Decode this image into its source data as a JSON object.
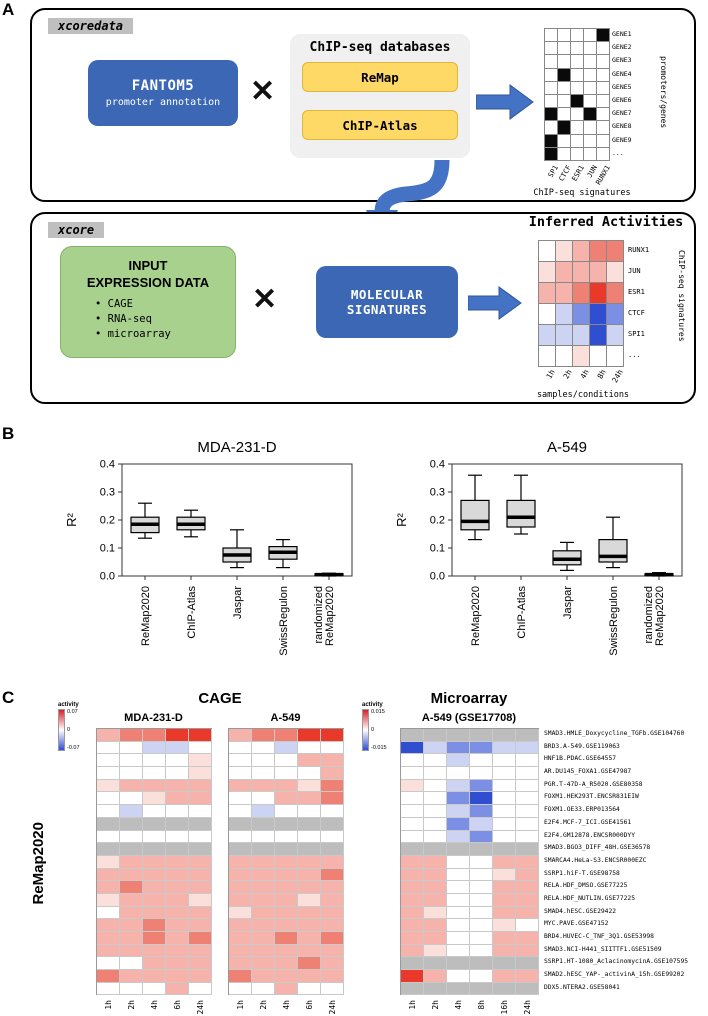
{
  "figure": {
    "panel_a_label": "A",
    "panel_b_label": "B",
    "panel_c_label": "C"
  },
  "palette": {
    "w": "#ffffff",
    "q": "#fbdfdb",
    "p": "#f5b3ab",
    "r": "#ee8074",
    "R": "#e8392b",
    "b": "#ccd3f3",
    "B": "#7b90e4",
    "D": "#2f4ed0",
    "g": "#bdbdbd"
  },
  "panel_a": {
    "xcoredata_tag": "xcoredata",
    "xcore_tag": "xcore",
    "times": "✕",
    "fantom5": {
      "title": "FANTOM5",
      "subtitle": "promoter annotation"
    },
    "databases": {
      "title": "ChIP-seq databases",
      "items": [
        "ReMap",
        "ChIP-Atlas"
      ]
    },
    "matrix": {
      "gene_labels": [
        "GENE1",
        "GENE2",
        "GENE3",
        "GENE4",
        "GENE5",
        "GENE6",
        "GENE7",
        "GENE8",
        "GENE9",
        "..."
      ],
      "tf_labels": [
        "SP1",
        "CTCF",
        "ESR1",
        "JUN",
        "RUNX1"
      ],
      "right_label": "promoters/genes",
      "bottom_label": "ChIP-seq signatures",
      "filled": [
        [
          0,
          4
        ],
        [
          3,
          1
        ],
        [
          5,
          2
        ],
        [
          6,
          0
        ],
        [
          6,
          3
        ],
        [
          7,
          1
        ],
        [
          8,
          0
        ],
        [
          9,
          0
        ]
      ]
    },
    "input_box": {
      "title1": "INPUT",
      "title2": "EXPRESSION DATA",
      "items": [
        "CAGE",
        "RNA-seq",
        "microarray"
      ]
    },
    "molecular_box": {
      "line1": "MOLECULAR",
      "line2": "SIGNATURES"
    },
    "inferred": {
      "title": "Inferred Activities",
      "row_labels": [
        "RUNX1",
        "JUN",
        "ESR1",
        "CTCF",
        "SPI1",
        "..."
      ],
      "col_labels": [
        "1h",
        "2h",
        "4h",
        "8h",
        "24h"
      ],
      "right_label": "ChIP-seq signatures",
      "bottom_label": "samples/conditions",
      "cells": [
        "wqprr",
        "qpppq",
        "pprRr",
        "wbBDB",
        "bbbDb",
        "wwqww"
      ]
    }
  },
  "chart_data": [
    {
      "type": "boxplot",
      "title": "MDA-231-D",
      "ylabel": "R²",
      "ylim": [
        0,
        0.4
      ],
      "yticks": [
        0,
        0.1,
        0.2,
        0.3,
        0.4
      ],
      "categories": [
        "ReMap2020",
        "ChIP-Atlas",
        "Jaspar",
        "SwissRegulon",
        "randomized\nReMap2020"
      ],
      "stats": [
        {
          "lo": 0.135,
          "q1": 0.155,
          "med": 0.185,
          "q3": 0.21,
          "hi": 0.26
        },
        {
          "lo": 0.14,
          "q1": 0.165,
          "med": 0.185,
          "q3": 0.21,
          "hi": 0.235
        },
        {
          "lo": 0.03,
          "q1": 0.05,
          "med": 0.075,
          "q3": 0.1,
          "hi": 0.165
        },
        {
          "lo": 0.03,
          "q1": 0.06,
          "med": 0.085,
          "q3": 0.105,
          "hi": 0.13
        },
        {
          "lo": 0.0,
          "q1": 0.002,
          "med": 0.005,
          "q3": 0.008,
          "hi": 0.01
        }
      ]
    },
    {
      "type": "boxplot",
      "title": "A-549",
      "ylabel": "R²",
      "ylim": [
        0,
        0.4
      ],
      "yticks": [
        0,
        0.1,
        0.2,
        0.3,
        0.4
      ],
      "categories": [
        "ReMap2020",
        "ChIP-Atlas",
        "Jaspar",
        "SwissRegulon",
        "randomized\nReMap2020"
      ],
      "stats": [
        {
          "lo": 0.13,
          "q1": 0.165,
          "med": 0.195,
          "q3": 0.27,
          "hi": 0.36
        },
        {
          "lo": 0.15,
          "q1": 0.175,
          "med": 0.21,
          "q3": 0.27,
          "hi": 0.36
        },
        {
          "lo": 0.02,
          "q1": 0.04,
          "med": 0.06,
          "q3": 0.09,
          "hi": 0.12
        },
        {
          "lo": 0.03,
          "q1": 0.05,
          "med": 0.07,
          "q3": 0.13,
          "hi": 0.21
        },
        {
          "lo": 0.0,
          "q1": 0.002,
          "med": 0.005,
          "q3": 0.008,
          "hi": 0.012
        }
      ]
    },
    {
      "type": "heatmap",
      "group": "CAGE",
      "title": "MDA-231-D",
      "col_labels": [
        "1h",
        "2h",
        "4h",
        "6h",
        "24h"
      ],
      "rows": [
        "prrRR",
        "wwbbw",
        "wwwwq",
        "wwwwq",
        "qpppp",
        "wwqpp",
        "wbwww",
        "ggggg",
        "wwwww",
        "ggggg",
        "qpppp",
        "ppppp",
        "prppp",
        "qpppq",
        "wpppp",
        "pprpp",
        "pprpr",
        "ppppp",
        "wwppp",
        "rpppp",
        "wwwpw"
      ]
    },
    {
      "type": "heatmap",
      "group": "CAGE",
      "title": "A-549",
      "col_labels": [
        "1h",
        "2h",
        "4h",
        "6h",
        "24h"
      ],
      "rows": [
        "prrRR",
        "wwbww",
        "wwwpp",
        "wwwwp",
        "pppqr",
        "wwppr",
        "wbwww",
        "ggggg",
        "wwwww",
        "ggggg",
        "ppppp",
        "ppppr",
        "ppppp",
        "pppqp",
        "qpppp",
        "ppppp",
        "pprpr",
        "ppppp",
        "ppprp",
        "rpppp",
        "wwpww"
      ]
    },
    {
      "type": "heatmap",
      "group": "Microarray",
      "title": "A-549 (GSE17708)",
      "col_labels": [
        "1h",
        "2h",
        "4h",
        "8h",
        "16h",
        "24h"
      ],
      "rows": [
        "gggggg",
        "DbBBbb",
        "wwbwww",
        "wwwwww",
        "qwbBww",
        "wwBDww",
        "wwbBww",
        "wwBbww",
        "wwbBww",
        "gggggg",
        "ppwwpp",
        "ppwwqp",
        "ppwwpp",
        "ppwwpp",
        "pqwwpp",
        "ppwwqw",
        "ppwwpp",
        "pqwwpp",
        "gggggg",
        "Rpwwpp",
        "gggggg"
      ]
    }
  ],
  "panel_c": {
    "group_headers": {
      "cage": "CAGE",
      "microarray": "Microarray"
    },
    "side_label": "ReMap2020",
    "legend_cage": {
      "title": "activity",
      "max": "0.07",
      "mid": "0",
      "min": "-0.07"
    },
    "legend_microarray": {
      "title": "activity",
      "max": "0.015",
      "mid": "0",
      "min": "-0.015"
    },
    "row_labels": [
      "SMAD3.HMLE_Doxycycline_TGFb.GSE104760",
      "BRD3.A-549.GSE119063",
      "HNF1B.PDAC.GSE64557",
      "AR.DU145_FOXA1.GSE47987",
      "PGR.T-47D-A_R5020.GSE80358",
      "FOXM1.HEK293T.ENCSR831EIW",
      "FOXM1.OE33.ERP013564",
      "E2F4.MCF-7_ICI.GSE41561",
      "E2F4.GM12878.ENCSR000DYY",
      "SMAD3.BGO3_DIFF_48H.GSE36578",
      "SMARCA4.HeLa-S3.ENCSR000EZC",
      "SSRP1.hiF-T.GSE98758",
      "RELA.HDF_DMSO.GSE77225",
      "RELA.HDF_NUTLIN.GSE77225",
      "SMAD4.hESC.GSE29422",
      "MYC.PAVE.GSE47152",
      "BRD4.HUVEC-C_TNF_3Q1.GSE53998",
      "SMAD3.NCI-H441_SIITTF1.GSE51509",
      "SSRP1.HT-1080_AclacinomycinA.GSE107595",
      "SMAD2.hESC_YAP-_activinA_15h.GSE99202",
      "DDX5.NTERA2.GSE58041"
    ]
  }
}
